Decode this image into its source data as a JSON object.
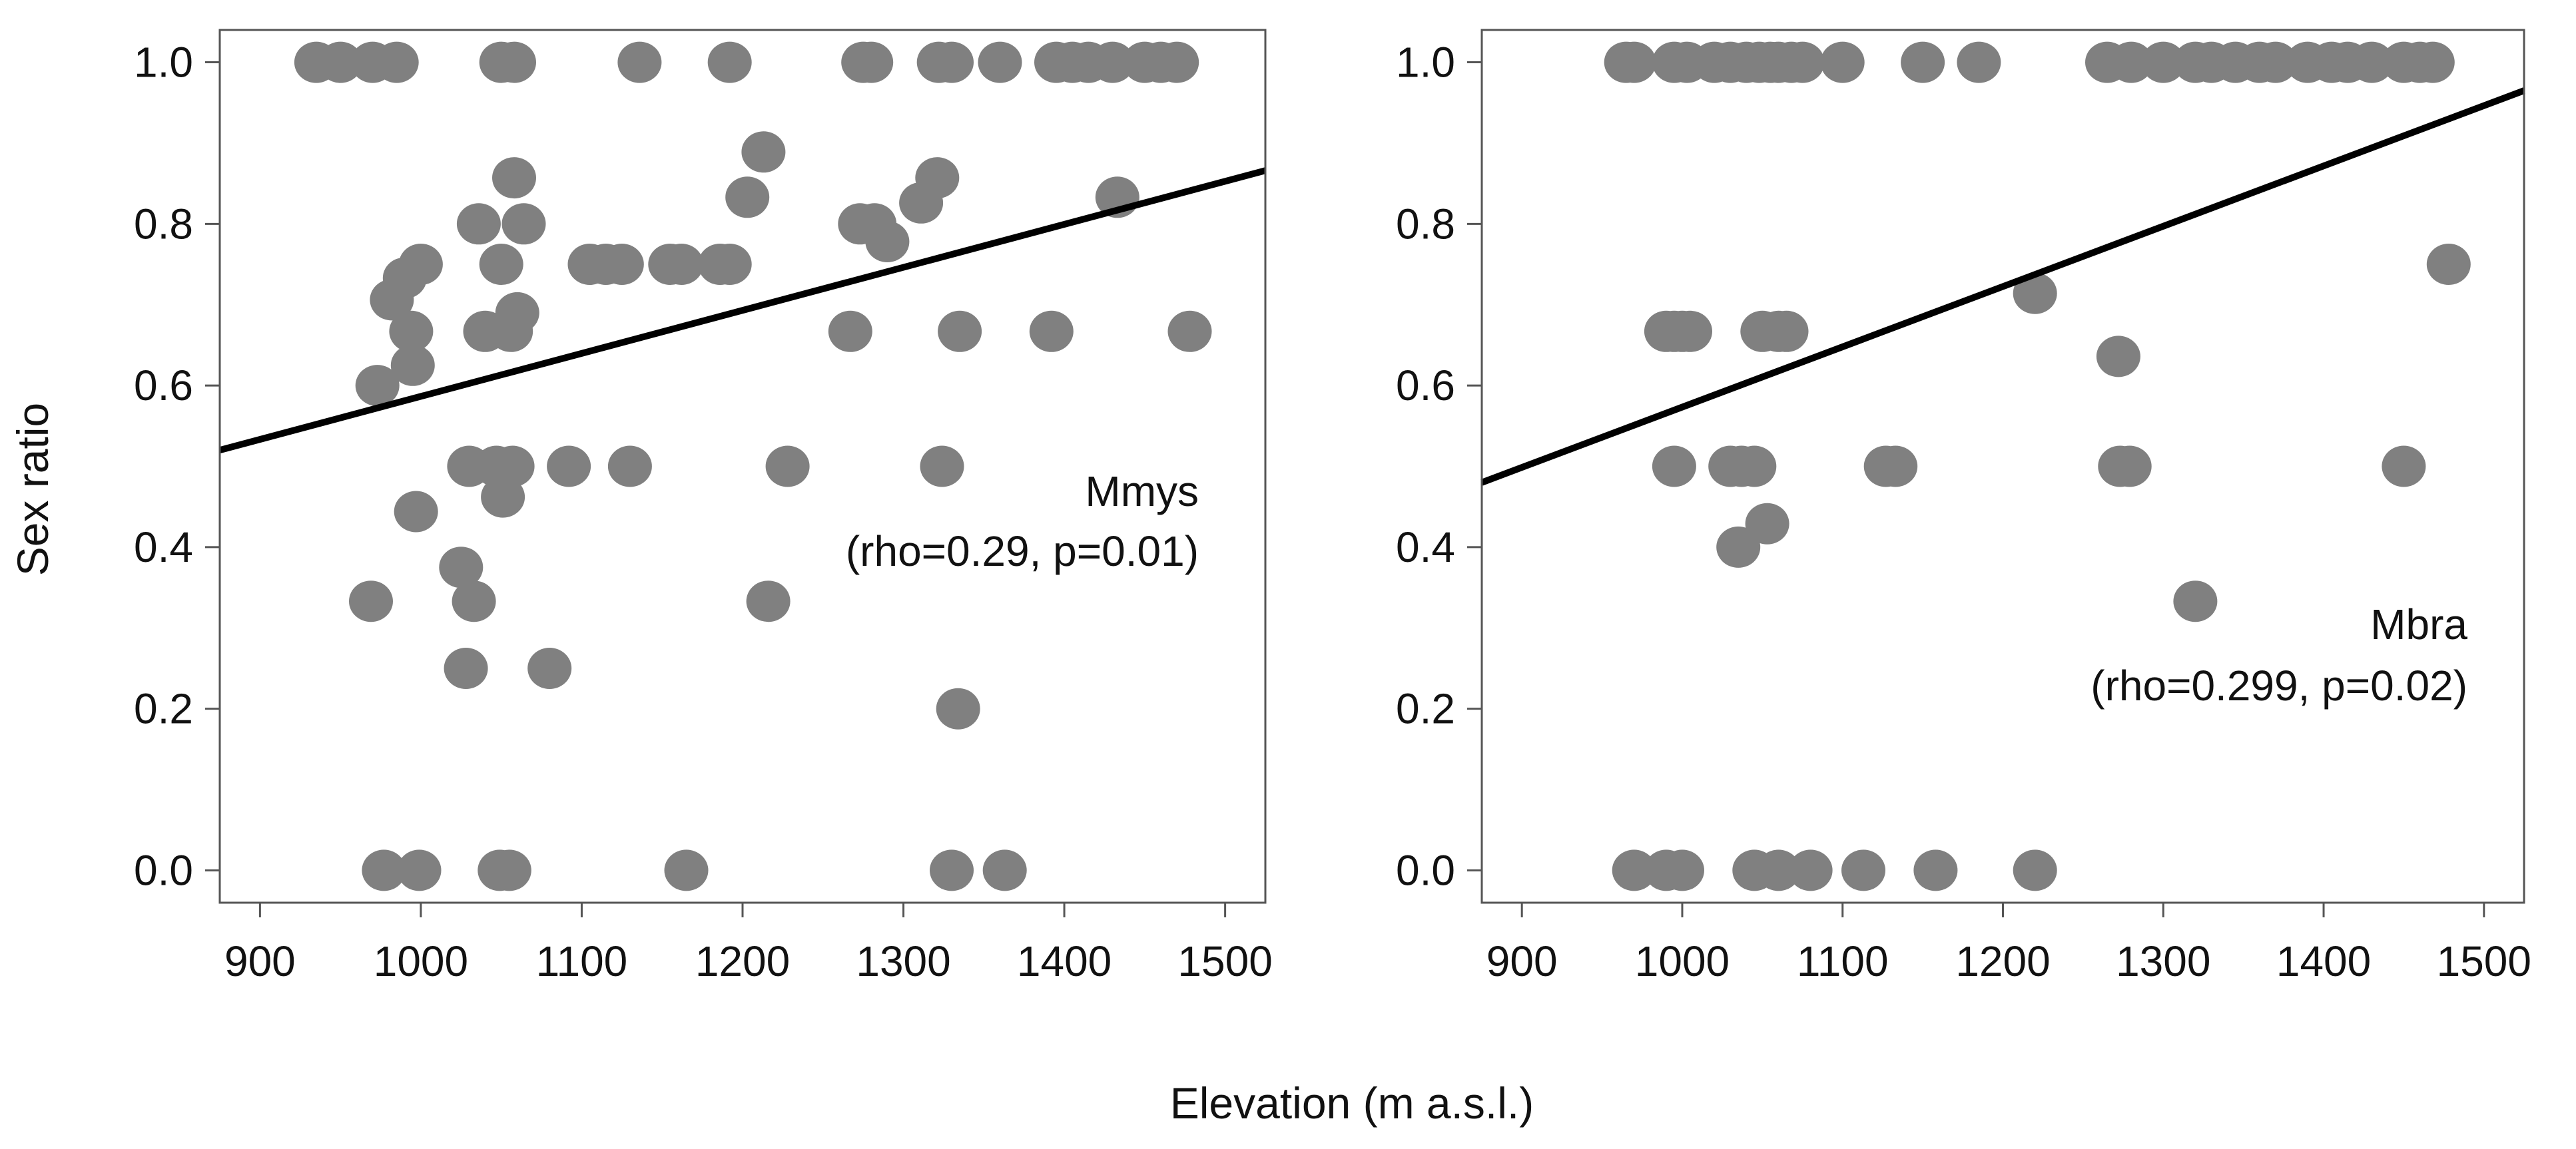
{
  "figure": {
    "shared_xlabel": "Elevation (m a.s.l.)",
    "shared_ylabel": "Sex ratio",
    "point_color": "#808080",
    "line_color": "#000000"
  },
  "chart_data": [
    {
      "type": "scatter",
      "title": "",
      "xlabel": "Elevation (m a.s.l.)",
      "ylabel": "Sex ratio",
      "xlim": [
        875,
        1525
      ],
      "ylim": [
        -0.04,
        1.04
      ],
      "xticks": [
        900,
        1000,
        1100,
        1200,
        1300,
        1400,
        1500
      ],
      "xtick_labels": [
        "900",
        "1000",
        "1100",
        "1200",
        "1300",
        "1400",
        "1500"
      ],
      "yticks": [
        0.0,
        0.2,
        0.4,
        0.6,
        0.8,
        1.0
      ],
      "ytick_labels": [
        "0.0",
        "0.2",
        "0.4",
        "0.6",
        "0.8",
        "1.0"
      ],
      "grid": false,
      "annotation": {
        "species": "Mmys",
        "stats": "(rho=0.29, p=0.01)"
      },
      "trend_line": {
        "x": [
          875,
          1525
        ],
        "y": [
          0.52,
          0.866
        ]
      },
      "series": [
        {
          "name": "Mmys",
          "x": [
            935,
            950,
            970,
            985,
            1050,
            1058,
            1136,
            1192,
            1275,
            1280,
            1322,
            1330,
            1360,
            1395,
            1405,
            1415,
            1430,
            1450,
            1460,
            1470,
            1058,
            1213,
            1321,
            1433,
            1273,
            1282,
            1290,
            1311,
            1036,
            1064,
            1115,
            1192,
            1203,
            982,
            990,
            1000,
            1050,
            1105,
            1125,
            1155,
            1162,
            1186,
            994,
            995,
            1040,
            1060,
            1056,
            973,
            1267,
            1335,
            1392,
            1478,
            1030,
            1047,
            1057,
            1092,
            1130,
            1228,
            1324,
            997,
            1051,
            1025,
            1033,
            1028,
            1080,
            969,
            1216,
            1334,
            977,
            999,
            1049,
            1055,
            1165,
            1330,
            1363
          ],
          "y": [
            1,
            1,
            1,
            1,
            1,
            1,
            1,
            1,
            1,
            1,
            1,
            1,
            1,
            1,
            1,
            1,
            1,
            1,
            1,
            1,
            0.857,
            0.889,
            0.857,
            0.833,
            0.8,
            0.8,
            0.778,
            0.826,
            0.8,
            0.8,
            0.75,
            0.75,
            0.833,
            0.706,
            0.733,
            0.75,
            0.75,
            0.75,
            0.75,
            0.75,
            0.75,
            0.75,
            0.667,
            0.625,
            0.667,
            0.69,
            0.667,
            0.6,
            0.667,
            0.667,
            0.667,
            0.667,
            0.5,
            0.5,
            0.5,
            0.5,
            0.5,
            0.5,
            0.5,
            0.444,
            0.462,
            0.375,
            0.333,
            0.25,
            0.25,
            0.333,
            0.333,
            0.2,
            0,
            0,
            0,
            0,
            0,
            0,
            0
          ]
        }
      ]
    },
    {
      "type": "scatter",
      "title": "",
      "xlabel": "Elevation (m a.s.l.)",
      "ylabel": "Sex ratio",
      "xlim": [
        875,
        1525
      ],
      "ylim": [
        -0.04,
        1.04
      ],
      "xticks": [
        900,
        1000,
        1100,
        1200,
        1300,
        1400,
        1500
      ],
      "xtick_labels": [
        "900",
        "1000",
        "1100",
        "1200",
        "1300",
        "1400",
        "1500"
      ],
      "yticks": [
        0.0,
        0.2,
        0.4,
        0.6,
        0.8,
        1.0
      ],
      "ytick_labels": [
        "0.0",
        "0.2",
        "0.4",
        "0.6",
        "0.8",
        "1.0"
      ],
      "grid": false,
      "annotation": {
        "species": "Mbra",
        "stats": "(rho=0.299, p=0.02)"
      },
      "trend_line": {
        "x": [
          875,
          1525
        ],
        "y": [
          0.48,
          0.965
        ]
      },
      "series": [
        {
          "name": "Mbra",
          "x": [
            965,
            970,
            995,
            1003,
            1020,
            1030,
            1040,
            1048,
            1055,
            1060,
            1068,
            1075,
            1100,
            1150,
            1185,
            1265,
            1280,
            1300,
            1320,
            1330,
            1345,
            1360,
            1370,
            1390,
            1405,
            1415,
            1430,
            1450,
            1460,
            1468,
            1478,
            1220,
            1272,
            990,
            995,
            1000,
            1005,
            1050,
            1060,
            1065,
            995,
            1030,
            1037,
            1045,
            1127,
            1133,
            1273,
            1279,
            1450,
            1053,
            1035,
            1320,
            970,
            990,
            1000,
            1045,
            1060,
            1080,
            1113,
            1158,
            1220
          ],
          "y": [
            1,
            1,
            1,
            1,
            1,
            1,
            1,
            1,
            1,
            1,
            1,
            1,
            1,
            1,
            1,
            1,
            1,
            1,
            1,
            1,
            1,
            1,
            1,
            1,
            1,
            1,
            1,
            1,
            1,
            1,
            0.75,
            0.714,
            0.636,
            0.667,
            0.667,
            0.667,
            0.667,
            0.667,
            0.667,
            0.667,
            0.5,
            0.5,
            0.5,
            0.5,
            0.5,
            0.5,
            0.5,
            0.5,
            0.5,
            0.429,
            0.4,
            0.333,
            0,
            0,
            0,
            0,
            0,
            0,
            0,
            0,
            0
          ]
        }
      ]
    }
  ]
}
